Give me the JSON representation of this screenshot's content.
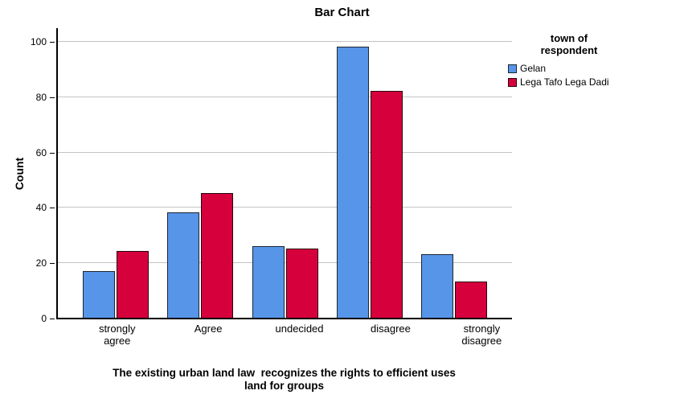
{
  "chart_data": {
    "type": "bar",
    "title": "Bar Chart",
    "categories": [
      "strongly agree",
      "Agree",
      "undecided",
      "disagree",
      "strongly disagree"
    ],
    "x_tick_labels": [
      "strongly\nagree",
      "Agree",
      "undecided",
      "disagree",
      "strongly\ndisagree"
    ],
    "series": [
      {
        "name": "Gelan",
        "color": "#5795E8",
        "border_color": "#1c2633",
        "values": [
          17,
          38,
          26,
          98,
          23
        ]
      },
      {
        "name": "Lega Tafo Lega Dadi",
        "color": "#D6013C",
        "border_color": "#26060e",
        "values": [
          24,
          45,
          25,
          82,
          13
        ]
      }
    ],
    "ylabel": "Count",
    "xlabel": "The existing urban land law  recognizes the rights to efficient uses\nland for groups",
    "ylim": [
      0,
      100
    ],
    "yticks": [
      0,
      20,
      40,
      60,
      80,
      100
    ],
    "grid": true,
    "gridline_color": "#c3c3c3",
    "axis_color": "#000000",
    "legend": {
      "title": "town of\nrespondent",
      "position": "right"
    }
  }
}
